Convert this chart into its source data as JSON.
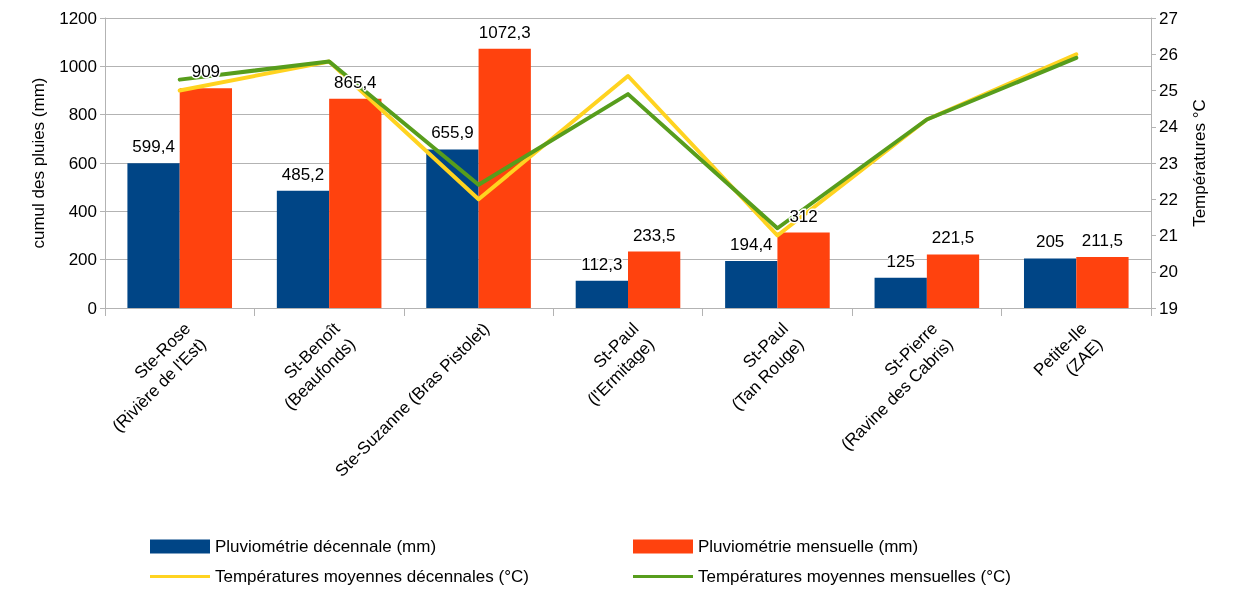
{
  "chart_data": {
    "type": "bar",
    "ylabel": "cumul des pluies (mm)",
    "y2label": "Températures °C",
    "categories": [
      "Ste-Rose\n(Rivière de l'Est)",
      "St-Benoît\n(Beaufonds)",
      "Ste-Suzanne (Bras Pistolet)",
      "St-Paul\n(l'Ermitage)",
      "St-Paul\n(Tan Rouge)",
      "St-Pierre\n(Ravine des Cabris)",
      "Petite-Ile\n(ZAE)"
    ],
    "series": [
      {
        "name": "Pluviométrie décennale (mm)",
        "color": "#004586",
        "values": [
          599.4,
          485.2,
          655.9,
          112.3,
          194.4,
          125,
          205
        ],
        "value_labels": [
          "599,4",
          "485,2",
          "655,9",
          "112,3",
          "194,4",
          "125",
          "205"
        ]
      },
      {
        "name": "Pluviométrie mensuelle (mm)",
        "color": "#ff420e",
        "values": [
          909,
          865.4,
          1072.3,
          233.5,
          312,
          221.5,
          211.5
        ],
        "value_labels": [
          "909",
          "865,4",
          "1072,3",
          "233,5",
          "312",
          "221,5",
          "211,5"
        ]
      },
      {
        "name": "Températures moyennes décennales (°C)",
        "type": "line",
        "axis": "y2",
        "color": "#ffd320",
        "values": [
          25.0,
          25.8,
          22.0,
          25.4,
          21.0,
          24.2,
          26.0
        ]
      },
      {
        "name": "Températures moyennes mensuelles (°C)",
        "type": "line",
        "axis": "y2",
        "color": "#579d1c",
        "values": [
          25.3,
          25.8,
          22.4,
          24.9,
          21.2,
          24.2,
          25.9
        ]
      }
    ],
    "ylim": [
      0,
      1200
    ],
    "yticks": [
      0,
      200,
      400,
      600,
      800,
      1000,
      1200
    ],
    "y2lim": [
      19,
      27
    ],
    "y2ticks": [
      19,
      20,
      21,
      22,
      23,
      24,
      25,
      26,
      27
    ],
    "grid": "y",
    "legend": "bottom",
    "marker": "none",
    "line_style": "solid"
  }
}
